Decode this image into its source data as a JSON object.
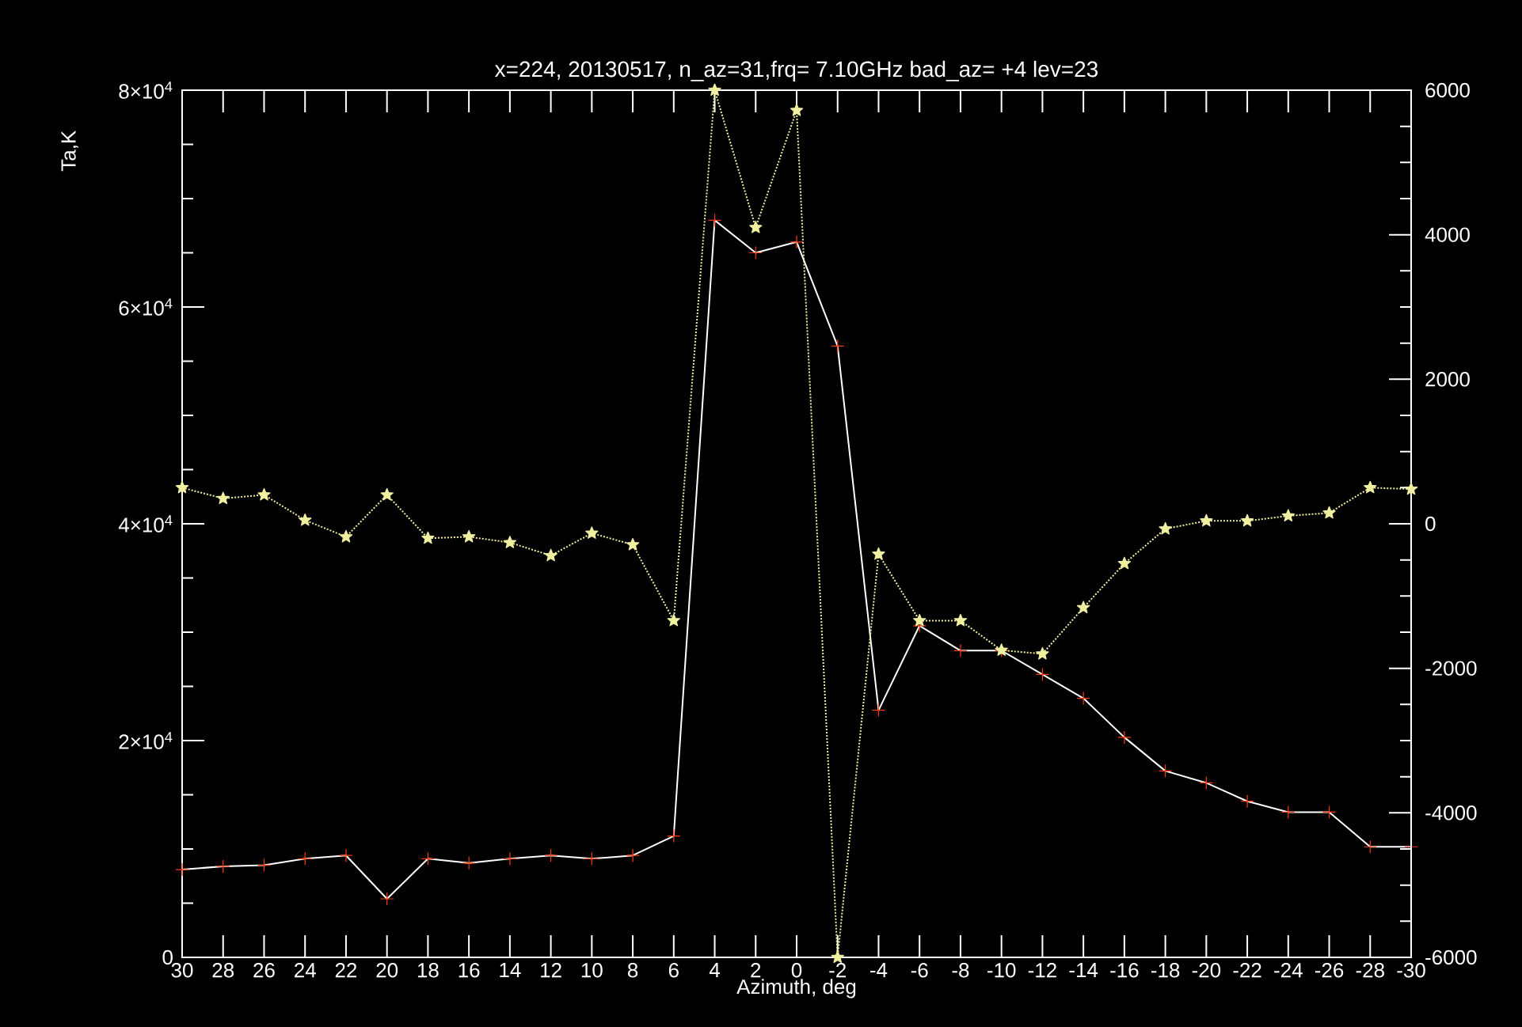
{
  "chart_data": {
    "type": "line",
    "title": "x=224, 20130517, n_az=31,frq= 7.10GHz bad_az= +4 lev=23",
    "xlabel": "Azimuth, deg",
    "ylabel": "Ta,K",
    "categories": [
      "30",
      "28",
      "26",
      "24",
      "22",
      "20",
      "18",
      "16",
      "14",
      "12",
      "10",
      "8",
      "6",
      "4",
      "2",
      "0",
      "-2",
      "-4",
      "-6",
      "-8",
      "-10",
      "-12",
      "-14",
      "-16",
      "-18",
      "-20",
      "-22",
      "-24",
      "-26",
      "-28",
      "-30"
    ],
    "series": [
      {
        "color": "#ff3a10",
        "marker": "cross",
        "line_style": "solid",
        "values": [
          8100,
          8400,
          8500,
          9100,
          9400,
          5400,
          9100,
          8700,
          9100,
          9400,
          9100,
          9400,
          11200,
          68000,
          65000,
          66000,
          56400,
          22800,
          30600,
          28300,
          28300,
          26100,
          23900,
          20300,
          17200,
          16100,
          14400,
          13400,
          13400,
          10200,
          10200
        ]
      },
      {
        "color": "#f0f0a0",
        "marker": "star",
        "line_style": "dotted",
        "axis": "y2",
        "values": [
          500,
          350,
          400,
          50,
          -180,
          400,
          -200,
          -180,
          -260,
          -440,
          -130,
          -290,
          -1340,
          6000,
          4100,
          5720,
          -6000,
          -420,
          -1340,
          -1340,
          -1750,
          -1800,
          -1160,
          -550,
          -70,
          40,
          40,
          110,
          150,
          500,
          480
        ]
      }
    ],
    "ylim": [
      0,
      80000
    ],
    "yticks": [
      0,
      {
        "value": 5000,
        "label": null
      },
      {
        "value": 10000,
        "label": null
      },
      {
        "value": 15000,
        "label": null
      },
      {
        "value": 20000,
        "label": "2×10$^{4}$"
      },
      {
        "value": 25000,
        "label": null
      },
      {
        "value": 30000,
        "label": null
      },
      {
        "value": 35000,
        "label": null
      },
      {
        "value": 40000,
        "label": "4×10$^{4}$"
      },
      {
        "value": 45000,
        "label": null
      },
      {
        "value": 50000,
        "label": null
      },
      {
        "value": 55000,
        "label": null
      },
      {
        "value": 60000,
        "label": "6×10$^{4}$"
      },
      {
        "value": 65000,
        "label": null
      },
      {
        "value": 70000,
        "label": null
      },
      {
        "value": 75000,
        "label": null
      },
      {
        "value": 80000,
        "label": "8×10$^{4}$"
      }
    ],
    "y2lim": [
      -6000,
      6000
    ],
    "y2ticks": [
      -6000,
      {
        "value": -5500,
        "label": null
      },
      {
        "value": -5000,
        "label": null
      },
      {
        "value": -4500,
        "label": null
      },
      -4000,
      {
        "value": -3500,
        "label": null
      },
      {
        "value": -3000,
        "label": null
      },
      {
        "value": -2500,
        "label": null
      },
      -2000,
      {
        "value": -1500,
        "label": null
      },
      {
        "value": -1000,
        "label": null
      },
      {
        "value": -500,
        "label": null
      },
      0,
      {
        "value": 500,
        "label": null
      },
      {
        "value": 1000,
        "label": null
      },
      {
        "value": 1500,
        "label": null
      },
      2000,
      {
        "value": 2500,
        "label": null
      },
      {
        "value": 3000,
        "label": null
      },
      {
        "value": 3500,
        "label": null
      },
      4000,
      {
        "value": 4500,
        "label": null
      },
      {
        "value": 5000,
        "label": null
      },
      {
        "value": 5500,
        "label": null
      },
      6000
    ],
    "grid": false
  }
}
